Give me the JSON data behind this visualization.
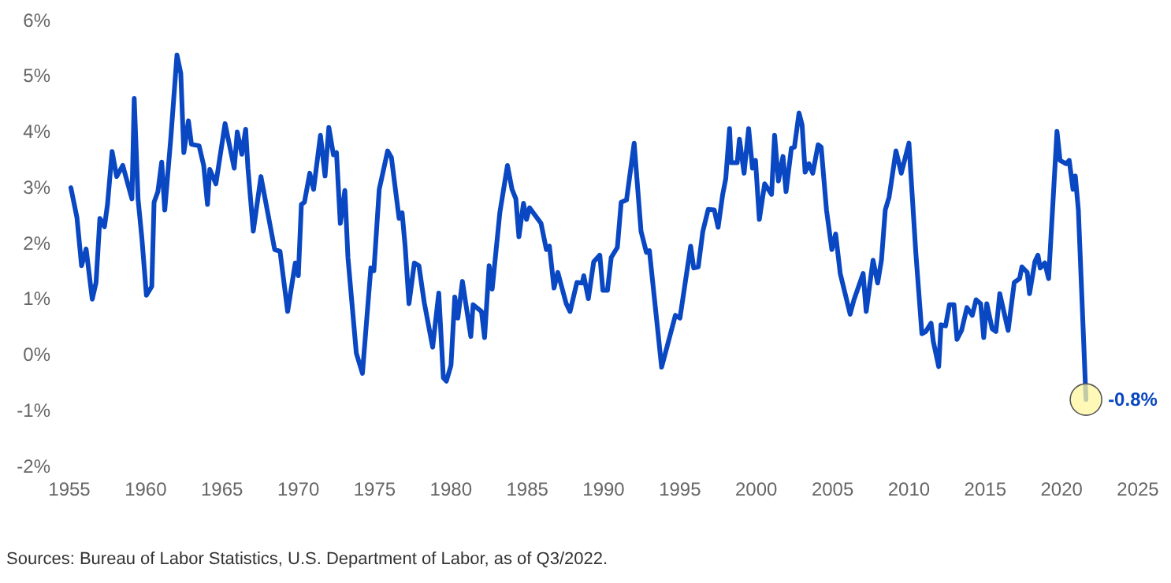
{
  "chart_data": {
    "type": "line",
    "x": [
      1955.1,
      1955.5,
      1955.8,
      1956.1,
      1956.5,
      1956.75,
      1957.0,
      1957.3,
      1957.5,
      1957.8,
      1958.1,
      1958.5,
      1959.1,
      1959.25,
      1959.5,
      1959.75,
      1960.05,
      1960.4,
      1960.55,
      1960.8,
      1961.05,
      1961.25,
      1961.65,
      1962.05,
      1962.3,
      1962.5,
      1962.8,
      1963.0,
      1963.5,
      1963.8,
      1964.05,
      1964.2,
      1964.6,
      1965.2,
      1965.8,
      1966.0,
      1966.3,
      1966.55,
      1966.7,
      1967.05,
      1967.55,
      1968.45,
      1968.8,
      1969.3,
      1969.8,
      1970.0,
      1970.2,
      1970.4,
      1970.75,
      1971.0,
      1971.45,
      1971.75,
      1972.0,
      1972.3,
      1972.5,
      1972.75,
      1973.05,
      1973.25,
      1973.8,
      1974.2,
      1974.75,
      1974.95,
      1975.3,
      1975.85,
      1976.1,
      1976.6,
      1976.8,
      1977.0,
      1977.25,
      1977.6,
      1977.9,
      1978.25,
      1978.8,
      1979.2,
      1979.5,
      1979.7,
      1980.0,
      1980.25,
      1980.45,
      1980.75,
      1981.3,
      1981.45,
      1982.0,
      1982.2,
      1982.5,
      1982.7,
      1983.2,
      1983.7,
      1984.0,
      1984.25,
      1984.45,
      1984.75,
      1984.95,
      1985.15,
      1985.9,
      1986.25,
      1986.45,
      1986.75,
      1987.0,
      1987.55,
      1987.8,
      1988.25,
      1988.6,
      1988.7,
      1989.0,
      1989.35,
      1989.75,
      1989.95,
      1990.25,
      1990.5,
      1990.9,
      1991.15,
      1991.5,
      1992.0,
      1992.45,
      1992.8,
      1993.0,
      1993.8,
      1994.7,
      1995.0,
      1995.7,
      1995.9,
      1996.2,
      1996.5,
      1996.85,
      1997.25,
      1997.5,
      1997.8,
      1998.0,
      1998.25,
      1998.35,
      1998.75,
      1998.9,
      1999.2,
      1999.5,
      1999.75,
      1999.95,
      2000.2,
      2000.55,
      2001.0,
      2001.2,
      2001.45,
      2001.75,
      2001.95,
      2002.3,
      2002.5,
      2002.8,
      2003.0,
      2003.2,
      2003.45,
      2003.7,
      2004.05,
      2004.25,
      2004.6,
      2004.95,
      2005.2,
      2005.5,
      2006.15,
      2006.4,
      2007.0,
      2007.2,
      2007.65,
      2007.95,
      2008.2,
      2008.45,
      2008.7,
      2009.15,
      2009.5,
      2010.0,
      2010.45,
      2010.85,
      2011.1,
      2011.45,
      2011.6,
      2011.95,
      2012.1,
      2012.4,
      2012.65,
      2012.95,
      2013.15,
      2013.45,
      2013.8,
      2014.15,
      2014.4,
      2014.7,
      2014.9,
      2015.1,
      2015.45,
      2015.7,
      2015.95,
      2016.5,
      2016.9,
      2017.25,
      2017.4,
      2017.75,
      2017.9,
      2018.25,
      2018.45,
      2018.6,
      2018.9,
      2019.15,
      2019.7,
      2019.9,
      2020.3,
      2020.5,
      2020.75,
      2020.9,
      2021.1,
      2021.6
    ],
    "series": [
      {
        "color": "#0a47c2",
        "values": [
          3.0,
          2.46,
          1.6,
          1.9,
          1.0,
          1.3,
          2.45,
          2.3,
          2.7,
          3.65,
          3.2,
          3.4,
          2.8,
          4.6,
          2.8,
          2.1,
          1.07,
          1.23,
          2.74,
          2.93,
          3.46,
          2.6,
          3.9,
          5.38,
          5.05,
          3.63,
          4.2,
          3.78,
          3.75,
          3.4,
          2.7,
          3.33,
          3.07,
          4.15,
          3.35,
          4.0,
          3.6,
          4.05,
          3.35,
          2.22,
          3.2,
          1.89,
          1.86,
          0.78,
          1.65,
          1.42,
          2.7,
          2.74,
          3.26,
          2.97,
          3.94,
          3.21,
          4.08,
          3.59,
          3.63,
          2.36,
          2.95,
          1.75,
          0.03,
          -0.33,
          1.56,
          1.51,
          2.97,
          3.66,
          3.54,
          2.45,
          2.55,
          1.94,
          0.92,
          1.65,
          1.6,
          0.94,
          0.14,
          1.11,
          -0.41,
          -0.47,
          -0.19,
          1.04,
          0.66,
          1.32,
          0.33,
          0.9,
          0.78,
          0.31,
          1.6,
          1.18,
          2.55,
          3.4,
          2.97,
          2.8,
          2.12,
          2.72,
          2.43,
          2.64,
          2.36,
          1.89,
          1.95,
          1.2,
          1.48,
          0.92,
          0.78,
          1.3,
          1.29,
          1.42,
          1.01,
          1.67,
          1.79,
          1.16,
          1.16,
          1.75,
          1.93,
          2.74,
          2.78,
          3.8,
          2.22,
          1.84,
          1.87,
          -0.22,
          0.71,
          0.66,
          1.95,
          1.56,
          1.58,
          2.22,
          2.61,
          2.6,
          2.29,
          2.88,
          3.16,
          4.06,
          3.45,
          3.45,
          3.87,
          3.26,
          4.06,
          3.35,
          3.49,
          2.43,
          3.07,
          2.88,
          3.94,
          3.12,
          3.56,
          2.93,
          3.71,
          3.73,
          4.34,
          4.13,
          3.28,
          3.43,
          3.26,
          3.77,
          3.73,
          2.6,
          1.89,
          2.17,
          1.46,
          0.73,
          0.99,
          1.46,
          0.78,
          1.7,
          1.29,
          1.7,
          2.6,
          2.83,
          3.66,
          3.26,
          3.8,
          1.84,
          0.38,
          0.42,
          0.57,
          0.24,
          -0.21,
          0.54,
          0.52,
          0.9,
          0.9,
          0.28,
          0.44,
          0.85,
          0.71,
          0.99,
          0.92,
          0.31,
          0.92,
          0.47,
          0.42,
          1.1,
          0.44,
          1.3,
          1.37,
          1.58,
          1.48,
          1.1,
          1.67,
          1.79,
          1.56,
          1.65,
          1.37,
          4.01,
          3.49,
          3.43,
          3.49,
          2.97,
          3.21,
          2.6,
          -0.8
        ]
      }
    ],
    "xlim": [
      1955,
      2025
    ],
    "xticks": [
      1955,
      1960,
      1965,
      1970,
      1975,
      1980,
      1985,
      1990,
      1995,
      2000,
      2005,
      2010,
      2015,
      2020,
      2025
    ],
    "ylim": [
      -2,
      6
    ],
    "yticks": [
      {
        "value": -2,
        "label": "-2%"
      },
      {
        "value": -1,
        "label": "-1%"
      },
      {
        "value": 0,
        "label": "0%"
      },
      {
        "value": 1,
        "label": "1%"
      },
      {
        "value": 2,
        "label": "2%"
      },
      {
        "value": 3,
        "label": "3%"
      },
      {
        "value": 4,
        "label": "4%"
      },
      {
        "value": 5,
        "label": "5%"
      },
      {
        "value": 6,
        "label": "6%"
      }
    ],
    "annotations": [
      {
        "text": "-0.8%",
        "x": 2021.6,
        "y": -0.8
      },
      "Sources: Bureau of Labor Statistics, U.S. Department of Labor, as of Q3/2022."
    ]
  }
}
